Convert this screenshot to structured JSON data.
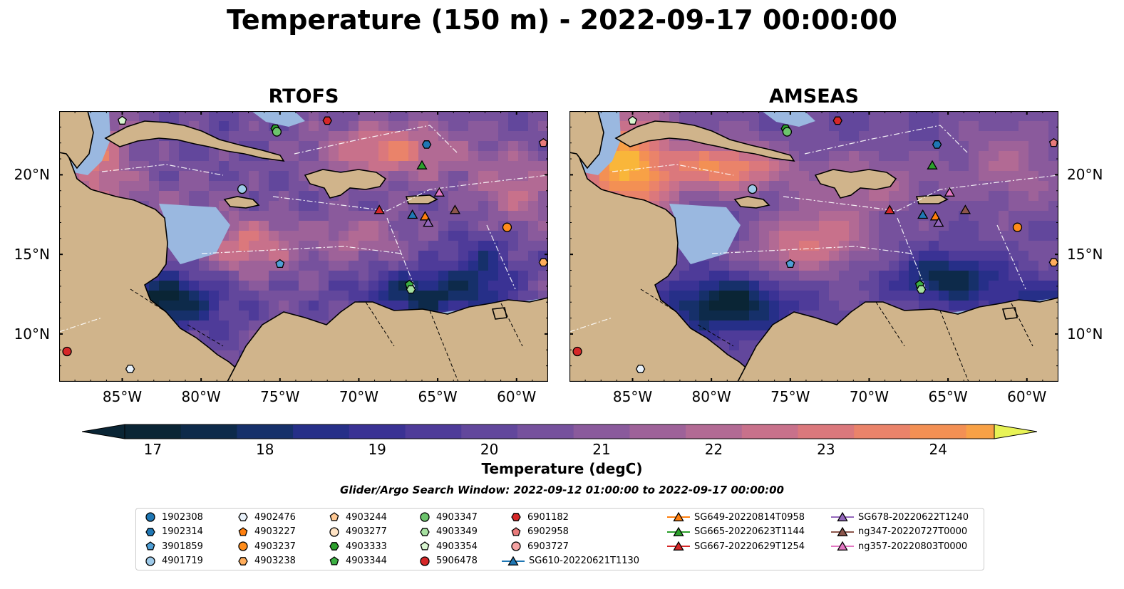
{
  "title": "Temperature (150 m) - 2022-09-17 00:00:00",
  "panels": [
    {
      "title": "RTOFS",
      "key": "rtofs"
    },
    {
      "title": "AMSEAS",
      "key": "amseas"
    }
  ],
  "map_extent": {
    "lon": [
      -89,
      -58
    ],
    "lat": [
      7,
      24
    ]
  },
  "lon_ticks": [
    {
      "value": -85,
      "label": "85°W"
    },
    {
      "value": -80,
      "label": "80°W"
    },
    {
      "value": -75,
      "label": "75°W"
    },
    {
      "value": -70,
      "label": "70°W"
    },
    {
      "value": -65,
      "label": "65°W"
    },
    {
      "value": -60,
      "label": "60°W"
    }
  ],
  "lat_ticks": [
    {
      "value": 20,
      "label": "20°N"
    },
    {
      "value": 15,
      "label": "15°N"
    },
    {
      "value": 10,
      "label": "10°N"
    }
  ],
  "colorbar": {
    "label": "Temperature (degC)",
    "min": 16.75,
    "max": 24.5,
    "step": 0.5,
    "extend": "both",
    "ticks": [
      {
        "value": 17,
        "label": "17"
      },
      {
        "value": 18,
        "label": "18"
      },
      {
        "value": 19,
        "label": "19"
      },
      {
        "value": 20,
        "label": "20"
      },
      {
        "value": 21,
        "label": "21"
      },
      {
        "value": 22,
        "label": "22"
      },
      {
        "value": 23,
        "label": "23"
      },
      {
        "value": 24,
        "label": "24"
      }
    ],
    "colors": [
      "#0a2535",
      "#0d2a4a",
      "#16306a",
      "#262f88",
      "#3a3294",
      "#4e3b99",
      "#62479c",
      "#76519d",
      "#8a5a9c",
      "#9e6299",
      "#b26a94",
      "#c8718b",
      "#db787c",
      "#ea836a",
      "#f39054",
      "#f8a146",
      "#f9b63a",
      "#f7ca3c",
      "#f2df48",
      "#e8f356"
    ]
  },
  "colors": {
    "land": "#d0b48b",
    "shelf": "#9ab8e0",
    "track": "#ffffff"
  },
  "search_window": "Glider/Argo Search Window: 2022-09-12 01:00:00 to 2022-09-17 00:00:00",
  "legend": [
    {
      "id": "1902308",
      "marker": "circle",
      "color": "#1f77b4"
    },
    {
      "id": "1902314",
      "marker": "hexagon",
      "color": "#1f77b4"
    },
    {
      "id": "3901859",
      "marker": "pentagon",
      "color": "#4f9fd6"
    },
    {
      "id": "4901719",
      "marker": "circle",
      "color": "#9ecae9"
    },
    {
      "id": "4902476",
      "marker": "hexagon",
      "color": "#e8f1fa"
    },
    {
      "id": "4903227",
      "marker": "pentagon",
      "color": "#ff7f0e"
    },
    {
      "id": "4903237",
      "marker": "circle",
      "color": "#ff8c1a"
    },
    {
      "id": "4903238",
      "marker": "hexagon",
      "color": "#ffad5c"
    },
    {
      "id": "4903244",
      "marker": "pentagon",
      "color": "#ffc994"
    },
    {
      "id": "4903277",
      "marker": "circle",
      "color": "#ffe3c4"
    },
    {
      "id": "4903333",
      "marker": "hexagon",
      "color": "#2ca02c"
    },
    {
      "id": "4903344",
      "marker": "pentagon",
      "color": "#3cb043"
    },
    {
      "id": "4903347",
      "marker": "circle",
      "color": "#6cc46c"
    },
    {
      "id": "4903349",
      "marker": "hexagon",
      "color": "#a6e0a0"
    },
    {
      "id": "4903354",
      "marker": "pentagon",
      "color": "#d8f5d0"
    },
    {
      "id": "5906478",
      "marker": "circle",
      "color": "#d62728"
    },
    {
      "id": "6901182",
      "marker": "hexagon",
      "color": "#d62728"
    },
    {
      "id": "6902958",
      "marker": "pentagon",
      "color": "#e87a7a"
    },
    {
      "id": "6903727",
      "marker": "circle",
      "color": "#f5a3a3"
    },
    {
      "id": "SG610-20220621T1130",
      "marker": "triangle",
      "color": "#1f77b4"
    },
    {
      "id": "SG649-20220814T0958",
      "marker": "triangle",
      "color": "#ff7f0e"
    },
    {
      "id": "SG665-20220623T1144",
      "marker": "triangle",
      "color": "#2ca02c"
    },
    {
      "id": "SG667-20220629T1254",
      "marker": "triangle",
      "color": "#d62728"
    },
    {
      "id": "SG678-20220622T1240",
      "marker": "triangle",
      "color": "#9467bd"
    },
    {
      "id": "ng347-20220727T0000",
      "marker": "triangle",
      "color": "#8c564b"
    },
    {
      "id": "ng357-20220803T0000",
      "marker": "triangle",
      "color": "#e377c2"
    }
  ],
  "observations": [
    {
      "id": "5906478",
      "lon": -88.5,
      "lat": 8.9
    },
    {
      "id": "4902476",
      "lon": -84.5,
      "lat": 7.8
    },
    {
      "id": "4903354",
      "lon": -85.0,
      "lat": 23.4
    },
    {
      "id": "4903333",
      "lon": -75.3,
      "lat": 22.9
    },
    {
      "id": "4903347",
      "lon": -75.2,
      "lat": 22.7
    },
    {
      "id": "6901182",
      "lon": -72.0,
      "lat": 23.4
    },
    {
      "id": "1902314",
      "lon": -65.7,
      "lat": 21.9
    },
    {
      "id": "6902958",
      "lon": -58.3,
      "lat": 22.0
    },
    {
      "id": "4901719",
      "lon": -77.4,
      "lat": 19.1
    },
    {
      "id": "3901859",
      "lon": -75.0,
      "lat": 14.4
    },
    {
      "id": "4903238",
      "lon": -58.3,
      "lat": 14.5
    },
    {
      "id": "4903237",
      "lon": -60.6,
      "lat": 16.7
    },
    {
      "id": "4903344",
      "lon": -66.8,
      "lat": 13.1
    },
    {
      "id": "4903349",
      "lon": -66.7,
      "lat": 12.8
    },
    {
      "id": "SG665-20220623T1144",
      "lon": -66.0,
      "lat": 20.6
    },
    {
      "id": "ng357-20220803T0000",
      "lon": -64.9,
      "lat": 18.9
    },
    {
      "id": "SG667-20220629T1254",
      "lon": -68.7,
      "lat": 17.8
    },
    {
      "id": "SG610-20220621T1130",
      "lon": -66.6,
      "lat": 17.5
    },
    {
      "id": "SG649-20220814T0958",
      "lon": -65.8,
      "lat": 17.4
    },
    {
      "id": "ng347-20220727T0000",
      "lon": -63.9,
      "lat": 17.8
    },
    {
      "id": "SG678-20220622T1240",
      "lon": -65.6,
      "lat": 17.0
    }
  ]
}
